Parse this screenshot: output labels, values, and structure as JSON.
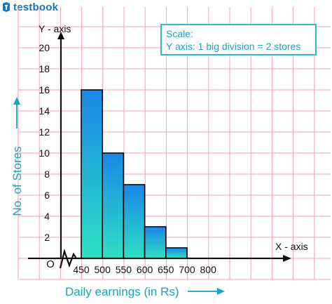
{
  "brand": {
    "name": "testbook",
    "logo_icon": "testbook-logo-icon"
  },
  "scale_box": {
    "line1": "Scale:",
    "line2": "Y axis: 1 big division = 2 stores"
  },
  "colors": {
    "grid": "#f2a2b4",
    "bar_top": "#1a87e6",
    "bar_bottom": "#2ee0c4",
    "accent": "#1aa3bf",
    "axis": "#111111"
  },
  "chart_data": {
    "type": "bar",
    "categories": [
      "450",
      "500",
      "550",
      "600",
      "650",
      "700",
      "800"
    ],
    "bins": [
      {
        "from": 450,
        "to": 500,
        "value": 16
      },
      {
        "from": 500,
        "to": 550,
        "value": 10
      },
      {
        "from": 550,
        "to": 600,
        "value": 7
      },
      {
        "from": 600,
        "to": 650,
        "value": 3
      },
      {
        "from": 650,
        "to": 700,
        "value": 1
      }
    ],
    "xlabel": "Daily earnings (in Rs)",
    "ylabel": "No. of Stores",
    "x_axis_name": "X - axis",
    "y_axis_name": "Y - axis",
    "origin_label": "O",
    "xticks": [
      "450",
      "500",
      "550",
      "600",
      "650",
      "700",
      "800"
    ],
    "yticks": [
      "2",
      "4",
      "6",
      "8",
      "10",
      "12",
      "14",
      "16",
      "18",
      "20"
    ],
    "ylim": [
      0,
      20
    ],
    "grid": true
  }
}
